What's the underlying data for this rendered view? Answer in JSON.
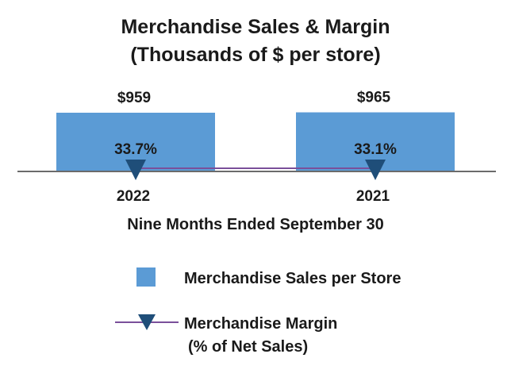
{
  "chart_data": {
    "type": "bar",
    "title": "Merchandise Sales & Margin",
    "subtitle": "(Thousands of $ per store)",
    "categories": [
      "2022",
      "2021"
    ],
    "xlabel": "Nine Months Ended September 30",
    "series": [
      {
        "name": "Merchandise Sales per Store",
        "type": "bar",
        "values": [
          959,
          965
        ],
        "value_labels": [
          "$959",
          "$965"
        ],
        "color": "#5b9bd5"
      },
      {
        "name_lines": [
          "Merchandise Margin",
          "(% of Net Sales)"
        ],
        "type": "line",
        "marker": "triangle-down",
        "values": [
          33.7,
          33.1
        ],
        "value_labels": [
          "33.7%",
          "33.1%"
        ],
        "line_color": "#7a4f9a",
        "marker_color": "#1f4e79"
      }
    ],
    "legend_position": "bottom",
    "grid": false
  }
}
